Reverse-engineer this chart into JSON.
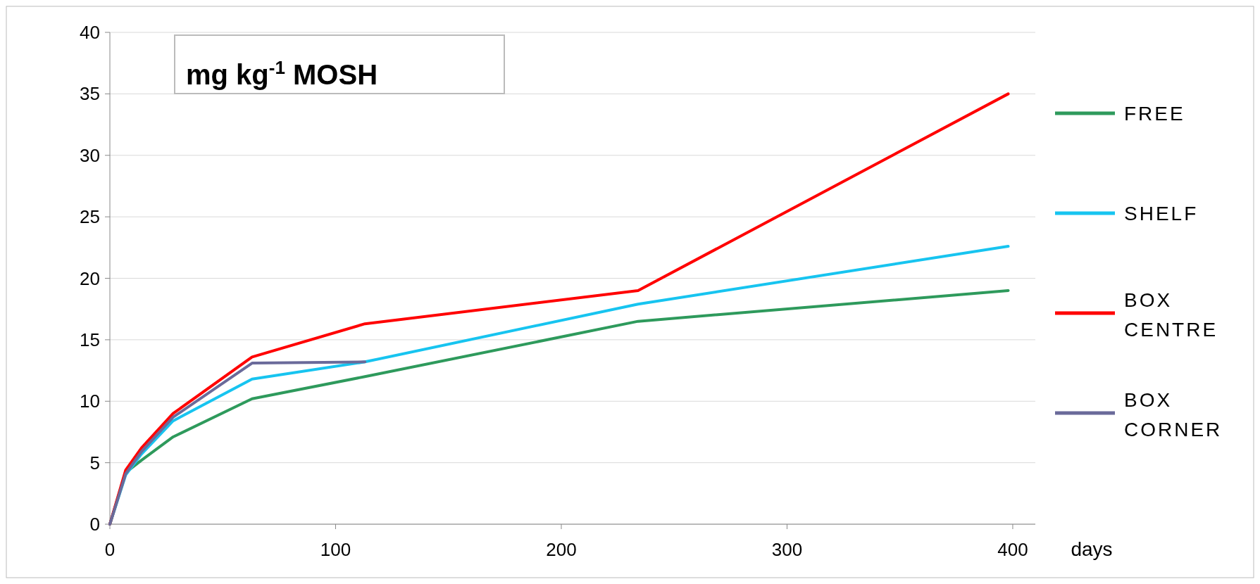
{
  "chart_data": {
    "type": "line",
    "title": "mg kg$^{-1}$ MOSH",
    "xlabel": "days",
    "xlim": [
      0,
      410
    ],
    "xticks": [
      0,
      100,
      200,
      300,
      400
    ],
    "ylim": [
      0,
      40
    ],
    "yticks": [
      0,
      5,
      10,
      15,
      20,
      25,
      30,
      35,
      40
    ],
    "grid": "y",
    "legend": "right",
    "line_style": "solid",
    "marker": "none",
    "series": [
      {
        "name": "FREE",
        "color": "#2e9a5c",
        "x": [
          0,
          7,
          14,
          28,
          63,
          113,
          234,
          398
        ],
        "values": [
          0,
          4.2,
          5.2,
          7.1,
          10.2,
          12.0,
          16.5,
          19.0
        ]
      },
      {
        "name": "SHELF",
        "color": "#17c4f0",
        "x": [
          0,
          7,
          14,
          28,
          63,
          113,
          234,
          398
        ],
        "values": [
          0,
          4.0,
          5.7,
          8.4,
          11.8,
          13.2,
          17.9,
          22.6
        ]
      },
      {
        "name": "BOX CENTRE",
        "color": "#ff0000",
        "x": [
          0,
          7,
          14,
          28,
          63,
          113,
          234,
          398
        ],
        "values": [
          0,
          4.4,
          6.2,
          9.0,
          13.6,
          16.3,
          19.0,
          35.0
        ]
      },
      {
        "name": "BOX CORNER",
        "color": "#6a6a9a",
        "x": [
          0,
          7,
          14,
          28,
          63,
          113
        ],
        "values": [
          0,
          4.1,
          5.9,
          8.7,
          13.1,
          13.2
        ]
      }
    ]
  }
}
